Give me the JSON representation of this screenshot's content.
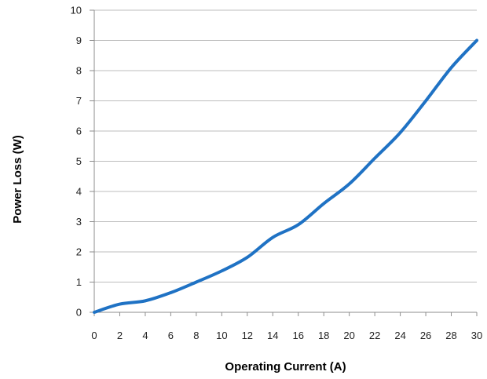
{
  "chart_data": {
    "type": "line",
    "title": "",
    "xlabel": "Operating Current (A)",
    "ylabel": "Power Loss (W)",
    "xlim": [
      0,
      30
    ],
    "ylim": [
      0,
      10
    ],
    "x_ticks": [
      "0",
      "2",
      "4",
      "6",
      "8",
      "10",
      "12",
      "14",
      "16",
      "18",
      "20",
      "22",
      "24",
      "26",
      "28",
      "30"
    ],
    "y_ticks": [
      "0",
      "1",
      "2",
      "3",
      "4",
      "5",
      "6",
      "7",
      "8",
      "9",
      "10"
    ],
    "grid": "horizontal",
    "legend": "none",
    "series": [
      {
        "color": "#1f72c4",
        "x": [
          0,
          2,
          4,
          6,
          8,
          10,
          12,
          14,
          16,
          18,
          20,
          22,
          24,
          26,
          28,
          30
        ],
        "y": [
          0,
          0.27,
          0.38,
          0.65,
          1.0,
          1.37,
          1.82,
          2.48,
          2.9,
          3.6,
          4.25,
          5.1,
          5.95,
          7.0,
          8.1,
          9.0
        ]
      }
    ]
  }
}
